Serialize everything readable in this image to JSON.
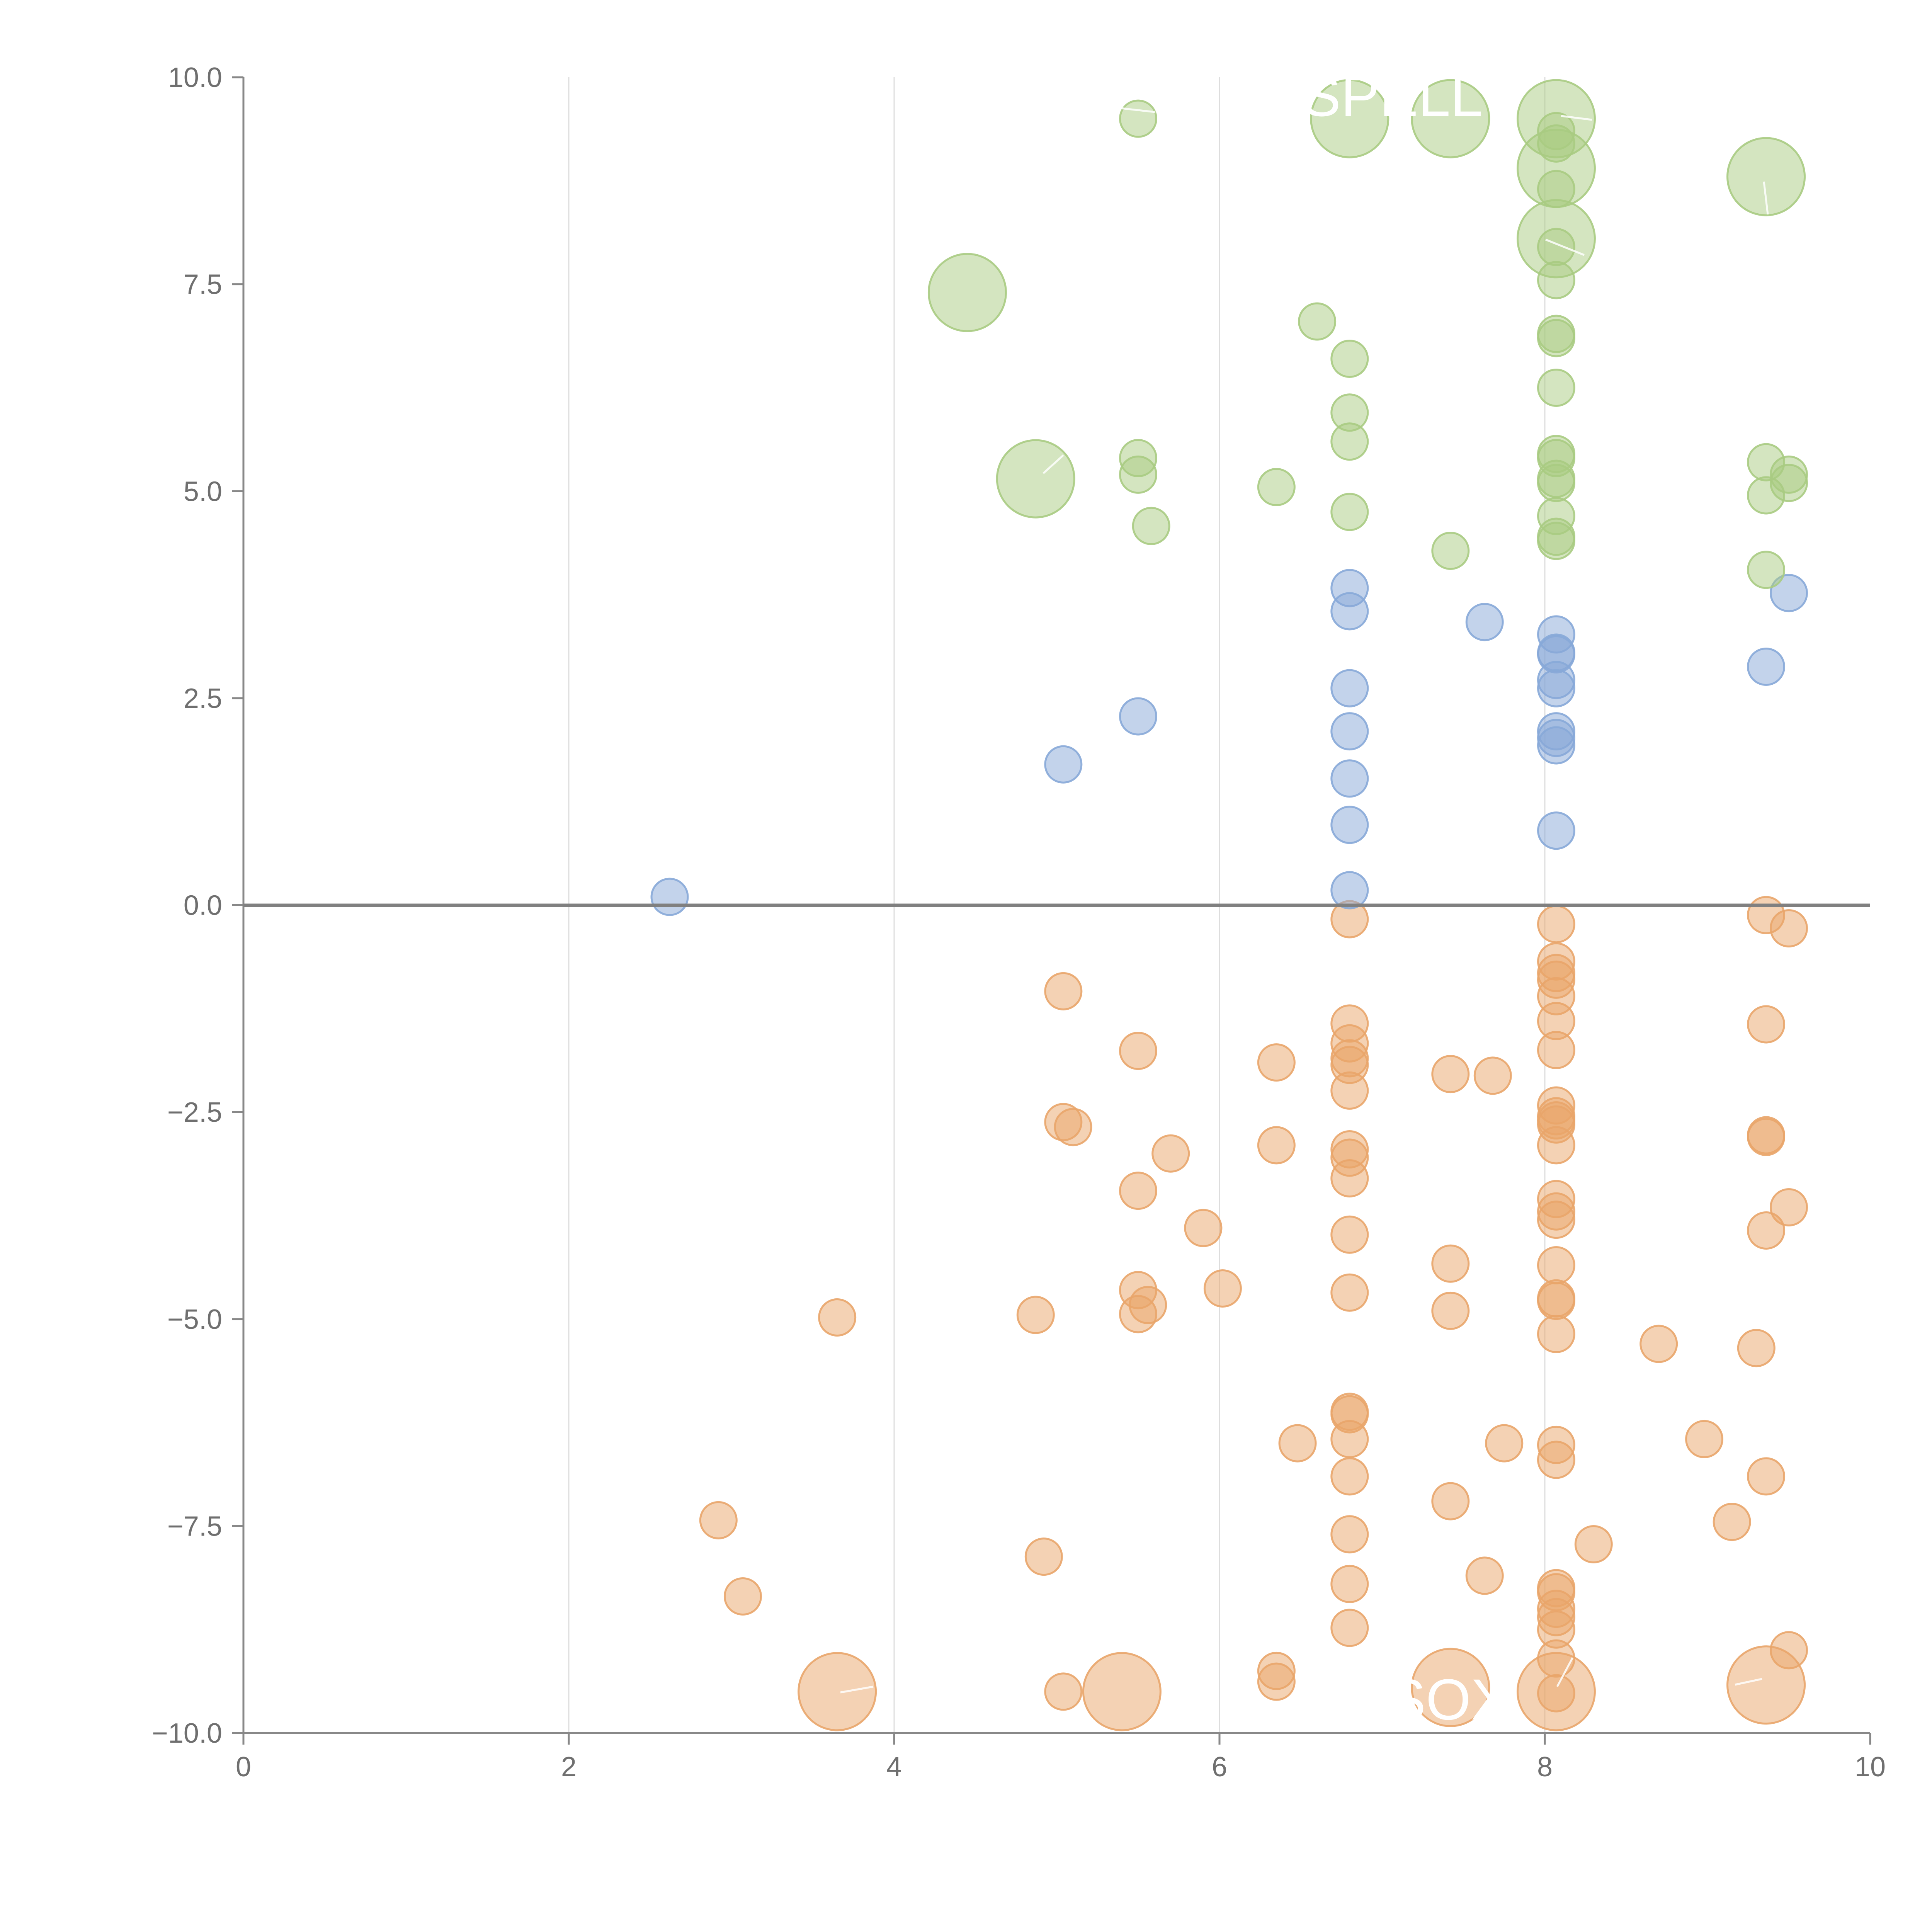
{
  "chart_data": {
    "type": "scatter",
    "title": "",
    "xlabel": "",
    "ylabel": "",
    "xlim": [
      0,
      10
    ],
    "ylim": [
      -10,
      10
    ],
    "x_ticks": [
      "0",
      "2",
      "4",
      "6",
      "8",
      "10"
    ],
    "y_ticks": [
      "10.0",
      "7.5",
      "5.0",
      "2.5",
      "0.0",
      "−2.5",
      "−5.0",
      "−7.5",
      "−10.0"
    ],
    "grid": "vertical",
    "legend": "none",
    "colors": {
      "green": "#a9cb82",
      "blue": "#87a8d8",
      "orange": "#e9a56a",
      "axis": "#888888"
    },
    "series": [
      {
        "name": "green",
        "color": "#a9cb82",
        "points": [
          [
            5.5,
            9.5,
            1
          ],
          [
            6.8,
            9.5,
            3
          ],
          [
            7.42,
            9.5,
            3
          ],
          [
            8.07,
            9.5,
            3
          ],
          [
            8.07,
            9.35,
            1
          ],
          [
            8.07,
            9.2,
            1
          ],
          [
            8.07,
            8.9,
            3
          ],
          [
            8.07,
            8.65,
            1
          ],
          [
            9.36,
            8.8,
            3
          ],
          [
            4.45,
            7.4,
            3
          ],
          [
            8.07,
            8.05,
            3
          ],
          [
            8.07,
            7.95,
            1
          ],
          [
            8.07,
            7.55,
            1
          ],
          [
            6.6,
            7.05,
            1
          ],
          [
            6.8,
            6.6,
            1
          ],
          [
            8.07,
            6.9,
            1
          ],
          [
            8.07,
            6.85,
            1
          ],
          [
            8.07,
            6.25,
            1
          ],
          [
            6.8,
            5.95,
            1
          ],
          [
            6.8,
            5.6,
            1
          ],
          [
            4.87,
            5.15,
            3
          ],
          [
            5.5,
            5.4,
            1
          ],
          [
            5.5,
            5.2,
            1
          ],
          [
            6.35,
            5.05,
            1
          ],
          [
            8.07,
            5.45,
            1
          ],
          [
            8.07,
            5.4,
            1
          ],
          [
            8.07,
            5.15,
            1
          ],
          [
            8.07,
            5.1,
            1
          ],
          [
            9.36,
            5.35,
            1
          ],
          [
            9.5,
            5.2,
            1
          ],
          [
            9.5,
            5.1,
            1
          ],
          [
            9.36,
            4.95,
            1
          ],
          [
            5.58,
            4.58,
            1
          ],
          [
            6.8,
            4.75,
            1
          ],
          [
            8.07,
            4.7,
            1
          ],
          [
            8.07,
            4.45,
            1
          ],
          [
            8.07,
            4.4,
            1
          ],
          [
            7.42,
            4.28,
            1
          ],
          [
            9.36,
            4.05,
            1
          ]
        ]
      },
      {
        "name": "blue",
        "color": "#87a8d8",
        "points": [
          [
            2.62,
            0.1,
            1
          ],
          [
            5.04,
            1.7,
            1
          ],
          [
            5.5,
            2.28,
            1
          ],
          [
            6.8,
            3.83,
            1
          ],
          [
            6.8,
            3.55,
            1
          ],
          [
            6.8,
            2.62,
            1
          ],
          [
            6.8,
            2.1,
            1
          ],
          [
            6.8,
            1.53,
            1
          ],
          [
            6.8,
            0.97,
            1
          ],
          [
            6.8,
            0.18,
            1
          ],
          [
            7.63,
            3.42,
            1
          ],
          [
            8.07,
            3.27,
            1
          ],
          [
            8.07,
            3.05,
            1
          ],
          [
            8.07,
            3.03,
            1
          ],
          [
            8.07,
            2.72,
            1
          ],
          [
            8.07,
            2.62,
            1
          ],
          [
            8.07,
            2.1,
            1
          ],
          [
            8.07,
            2.02,
            1
          ],
          [
            8.07,
            1.93,
            1
          ],
          [
            8.07,
            0.9,
            1
          ],
          [
            9.36,
            2.88,
            1
          ],
          [
            9.5,
            3.77,
            1
          ]
        ]
      },
      {
        "name": "orange",
        "color": "#e9a56a",
        "points": [
          [
            6.8,
            -0.17,
            1
          ],
          [
            8.07,
            -0.23,
            1
          ],
          [
            9.36,
            -0.12,
            1
          ],
          [
            9.5,
            -0.28,
            1
          ],
          [
            8.07,
            -0.68,
            1
          ],
          [
            8.07,
            -0.82,
            1
          ],
          [
            8.07,
            -0.9,
            1
          ],
          [
            8.07,
            -1.1,
            1
          ],
          [
            5.04,
            -1.04,
            1
          ],
          [
            8.07,
            -1.4,
            1
          ],
          [
            9.36,
            -1.44,
            1
          ],
          [
            6.8,
            -1.43,
            1
          ],
          [
            6.8,
            -1.67,
            1
          ],
          [
            5.5,
            -1.76,
            1
          ],
          [
            8.07,
            -1.75,
            1
          ],
          [
            6.8,
            -1.85,
            1
          ],
          [
            6.8,
            -1.93,
            1
          ],
          [
            6.35,
            -1.9,
            1
          ],
          [
            7.42,
            -2.04,
            1
          ],
          [
            7.68,
            -2.06,
            1
          ],
          [
            6.8,
            -2.24,
            1
          ],
          [
            8.07,
            -2.42,
            1
          ],
          [
            8.07,
            -2.55,
            1
          ],
          [
            8.07,
            -2.6,
            1
          ],
          [
            8.07,
            -2.65,
            1
          ],
          [
            5.04,
            -2.62,
            1
          ],
          [
            5.1,
            -2.68,
            1
          ],
          [
            9.36,
            -2.78,
            1
          ],
          [
            9.36,
            -2.8,
            1
          ],
          [
            6.35,
            -2.9,
            1
          ],
          [
            8.07,
            -2.9,
            1
          ],
          [
            6.8,
            -2.95,
            1
          ],
          [
            6.8,
            -3.05,
            1
          ],
          [
            5.7,
            -3.0,
            1
          ],
          [
            6.8,
            -3.3,
            1
          ],
          [
            5.5,
            -3.45,
            1
          ],
          [
            8.07,
            -3.55,
            1
          ],
          [
            9.5,
            -3.65,
            1
          ],
          [
            8.07,
            -3.7,
            1
          ],
          [
            8.07,
            -3.8,
            1
          ],
          [
            5.9,
            -3.9,
            1
          ],
          [
            9.36,
            -3.93,
            1
          ],
          [
            6.8,
            -3.98,
            1
          ],
          [
            7.42,
            -4.33,
            1
          ],
          [
            8.07,
            -4.35,
            1
          ],
          [
            5.5,
            -4.65,
            1
          ],
          [
            6.02,
            -4.63,
            1
          ],
          [
            6.8,
            -4.68,
            1
          ],
          [
            8.07,
            -4.75,
            1
          ],
          [
            8.07,
            -4.78,
            1
          ],
          [
            5.56,
            -4.83,
            1
          ],
          [
            7.42,
            -4.9,
            1
          ],
          [
            5.5,
            -4.94,
            1
          ],
          [
            4.87,
            -4.95,
            1
          ],
          [
            3.65,
            -4.98,
            1
          ],
          [
            8.07,
            -5.18,
            1
          ],
          [
            8.7,
            -5.3,
            1
          ],
          [
            9.3,
            -5.35,
            1
          ],
          [
            6.8,
            -6.12,
            1
          ],
          [
            6.8,
            -6.15,
            1
          ],
          [
            6.8,
            -6.45,
            1
          ],
          [
            8.07,
            -6.52,
            1
          ],
          [
            6.48,
            -6.5,
            1
          ],
          [
            7.75,
            -6.5,
            1
          ],
          [
            8.98,
            -6.45,
            1
          ],
          [
            8.07,
            -6.7,
            1
          ],
          [
            6.8,
            -6.9,
            1
          ],
          [
            9.36,
            -6.9,
            1
          ],
          [
            7.42,
            -7.2,
            1
          ],
          [
            2.92,
            -7.43,
            1
          ],
          [
            9.15,
            -7.45,
            1
          ],
          [
            6.8,
            -7.6,
            1
          ],
          [
            8.3,
            -7.72,
            1
          ],
          [
            4.92,
            -7.87,
            1
          ],
          [
            7.63,
            -8.1,
            1
          ],
          [
            6.8,
            -8.2,
            1
          ],
          [
            8.07,
            -8.25,
            1
          ],
          [
            8.07,
            -8.3,
            1
          ],
          [
            3.07,
            -8.35,
            1
          ],
          [
            8.07,
            -8.5,
            1
          ],
          [
            8.07,
            -8.6,
            1
          ],
          [
            8.07,
            -8.75,
            1
          ],
          [
            6.8,
            -8.73,
            1
          ],
          [
            9.5,
            -9.0,
            1
          ],
          [
            8.07,
            -9.1,
            1
          ],
          [
            6.35,
            -9.25,
            1
          ],
          [
            6.35,
            -9.38,
            1
          ],
          [
            3.65,
            -9.5,
            3
          ],
          [
            5.04,
            -9.5,
            1
          ],
          [
            5.4,
            -9.5,
            3
          ],
          [
            7.42,
            -9.45,
            3
          ],
          [
            8.07,
            -9.5,
            3
          ],
          [
            8.07,
            -9.52,
            1
          ],
          [
            9.36,
            -9.42,
            3
          ]
        ]
      }
    ],
    "annotations": [
      "SPELL",
      "SOX"
    ]
  }
}
